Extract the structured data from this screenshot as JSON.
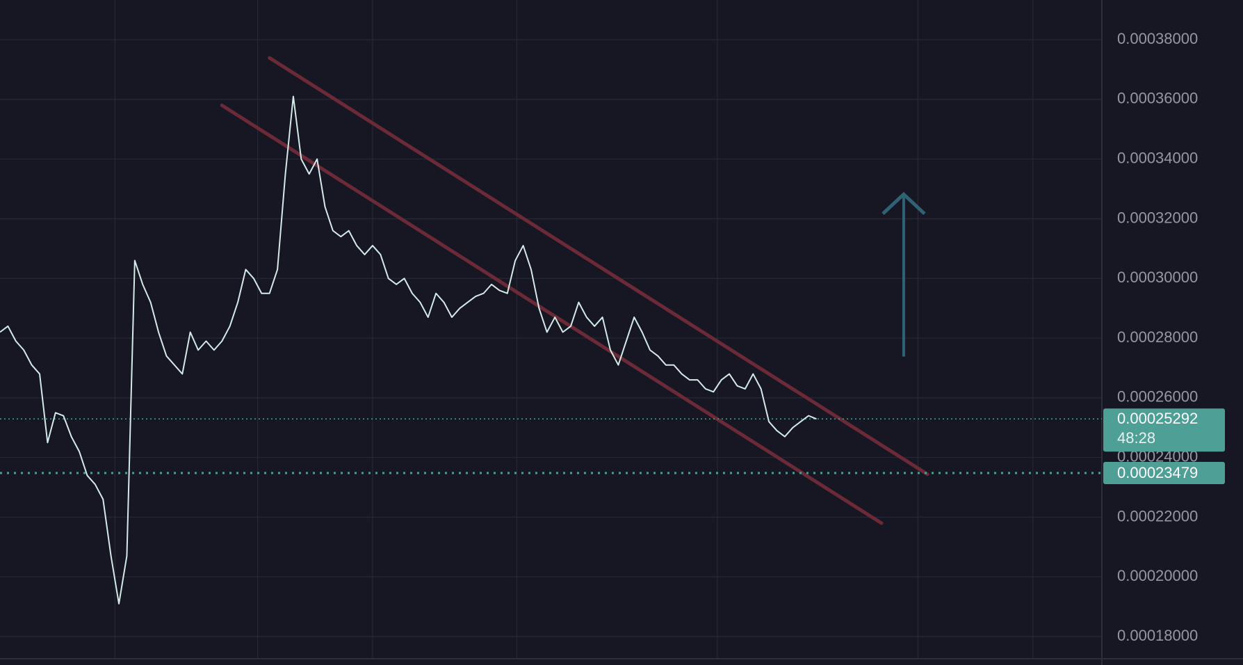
{
  "chart_data": {
    "type": "line",
    "xlim": [
      0,
      139
    ],
    "xticks": [
      14.5,
      32.5,
      47,
      65.2,
      90.5,
      115.8,
      130.3
    ],
    "ylim": [
      0.0001728,
      0.0003933
    ],
    "yticks": [
      {
        "value": 0.00018,
        "label": "0.00018000"
      },
      {
        "value": 0.0002,
        "label": "0.00020000"
      },
      {
        "value": 0.00022,
        "label": "0.00022000"
      },
      {
        "value": 0.00024,
        "label": "0.00024000"
      },
      {
        "value": 0.00026,
        "label": "0.00026000"
      },
      {
        "value": 0.00028,
        "label": "0.00028000"
      },
      {
        "value": 0.0003,
        "label": "0.00030000"
      },
      {
        "value": 0.00032,
        "label": "0.00032000"
      },
      {
        "value": 0.00034,
        "label": "0.00034000"
      },
      {
        "value": 0.00036,
        "label": "0.00036000"
      },
      {
        "value": 0.00038,
        "label": "0.00038000"
      }
    ],
    "grid": true,
    "x": [
      0,
      1,
      2,
      3,
      4,
      5,
      6,
      7,
      8,
      9,
      10,
      11,
      12,
      13,
      14,
      15,
      16,
      17,
      18,
      19,
      20,
      21,
      22,
      23,
      24,
      25,
      26,
      27,
      28,
      29,
      30,
      31,
      32,
      33,
      34,
      35,
      36,
      37,
      38,
      39,
      40,
      41,
      42,
      43,
      44,
      45,
      46,
      47,
      48,
      49,
      50,
      51,
      52,
      53,
      54,
      55,
      56,
      57,
      58,
      59,
      60,
      61,
      62,
      63,
      64,
      65,
      66,
      67,
      68,
      69,
      70,
      71,
      72,
      73,
      74,
      75,
      76,
      77,
      78,
      79,
      80,
      81,
      82,
      83,
      84,
      85,
      86,
      87,
      88,
      89,
      90,
      91,
      92,
      93,
      94,
      95,
      96,
      97,
      98,
      99,
      100,
      101,
      102,
      103
    ],
    "series": [
      {
        "color": "#d4ebe8",
        "values": [
          0.000282,
          0.000284,
          0.000279,
          0.000276,
          0.000271,
          0.000268,
          0.000245,
          0.000255,
          0.000254,
          0.000247,
          0.000242,
          0.000234,
          0.000231,
          0.000226,
          0.000207,
          0.000191,
          0.000207,
          0.000306,
          0.000298,
          0.000292,
          0.000282,
          0.000274,
          0.000271,
          0.000268,
          0.000282,
          0.000276,
          0.000279,
          0.000276,
          0.000279,
          0.000284,
          0.000292,
          0.000303,
          0.0003,
          0.000295,
          0.000295,
          0.000303,
          0.000335,
          0.000361,
          0.00034,
          0.000335,
          0.00034,
          0.000324,
          0.000316,
          0.000314,
          0.000316,
          0.000311,
          0.000308,
          0.000311,
          0.000308,
          0.0003,
          0.000298,
          0.0003,
          0.000295,
          0.000292,
          0.000287,
          0.000295,
          0.000292,
          0.000287,
          0.00029,
          0.000292,
          0.000294,
          0.000295,
          0.000298,
          0.000296,
          0.000295,
          0.000306,
          0.000311,
          0.000303,
          0.00029,
          0.000282,
          0.000287,
          0.000282,
          0.000284,
          0.000292,
          0.000287,
          0.000284,
          0.000287,
          0.000276,
          0.000271,
          0.000279,
          0.000287,
          0.000282,
          0.000276,
          0.000274,
          0.000271,
          0.000271,
          0.000268,
          0.000266,
          0.000266,
          0.000263,
          0.000262,
          0.000266,
          0.000268,
          0.000264,
          0.000263,
          0.000268,
          0.000263,
          0.000252,
          0.000249,
          0.000247,
          0.00025,
          0.000252,
          0.000254,
          0.0002529
        ]
      }
    ],
    "trendlines": [
      {
        "color": "#6b2a36",
        "x": [
          34,
          117
        ],
        "y": [
          0.0003739,
          0.0002344
        ]
      },
      {
        "color": "#6b2a36",
        "x": [
          28,
          111.2
        ],
        "y": [
          0.000358,
          0.000218
        ]
      }
    ],
    "arrow": {
      "color": "#2f6274",
      "x": 114,
      "y": [
        0.0002738,
        0.0003282
      ]
    },
    "price_line": {
      "value": 0.00025292,
      "label": "0.00025292",
      "color": "#4e9f95"
    },
    "countdown": "48:28",
    "alert_line": {
      "value": 0.00023479,
      "label": "0.00023479",
      "color": "#4e9f95"
    }
  }
}
